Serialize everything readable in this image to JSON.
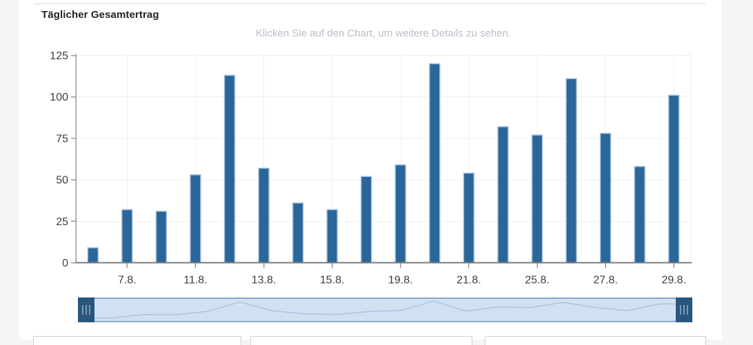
{
  "chart_data": {
    "type": "bar",
    "title": "Täglicher Gesamtertrag",
    "subtitle": "Klicken Sie auf den Chart, um weitere Details zu sehen.",
    "values": [
      9,
      32,
      31,
      53,
      113,
      57,
      36,
      32,
      52,
      59,
      120,
      54,
      82,
      77,
      111,
      78,
      58,
      101
    ],
    "x_tick_labels": [
      "7.8.",
      "11.8.",
      "13.8.",
      "15.8.",
      "19.8.",
      "21.8.",
      "25.8.",
      "27.8.",
      "29.8."
    ],
    "x_tick_bar_indices": [
      1,
      3,
      5,
      7,
      9,
      11,
      13,
      15,
      17
    ],
    "y_ticks": [
      0,
      25,
      50,
      75,
      100,
      125
    ],
    "ylim": [
      0,
      125
    ],
    "grid": true,
    "legend": "none",
    "colors": {
      "bar_fill": "#2a6699",
      "bar_border": "#a4c1dd",
      "grid_line": "#efeff2",
      "axis_y_line": "#9a9a9a",
      "axis_x_line": "#7d7d7d",
      "tick_mark": "#9a9a9a",
      "axis_label": "#3a3e44",
      "navigator_track": "#d2e1f1",
      "navigator_border": "#8aa8c7",
      "navigator_line": "#a9c4e2",
      "navigator_handle": "#27567f",
      "navigator_grip": "#8099b1"
    }
  }
}
